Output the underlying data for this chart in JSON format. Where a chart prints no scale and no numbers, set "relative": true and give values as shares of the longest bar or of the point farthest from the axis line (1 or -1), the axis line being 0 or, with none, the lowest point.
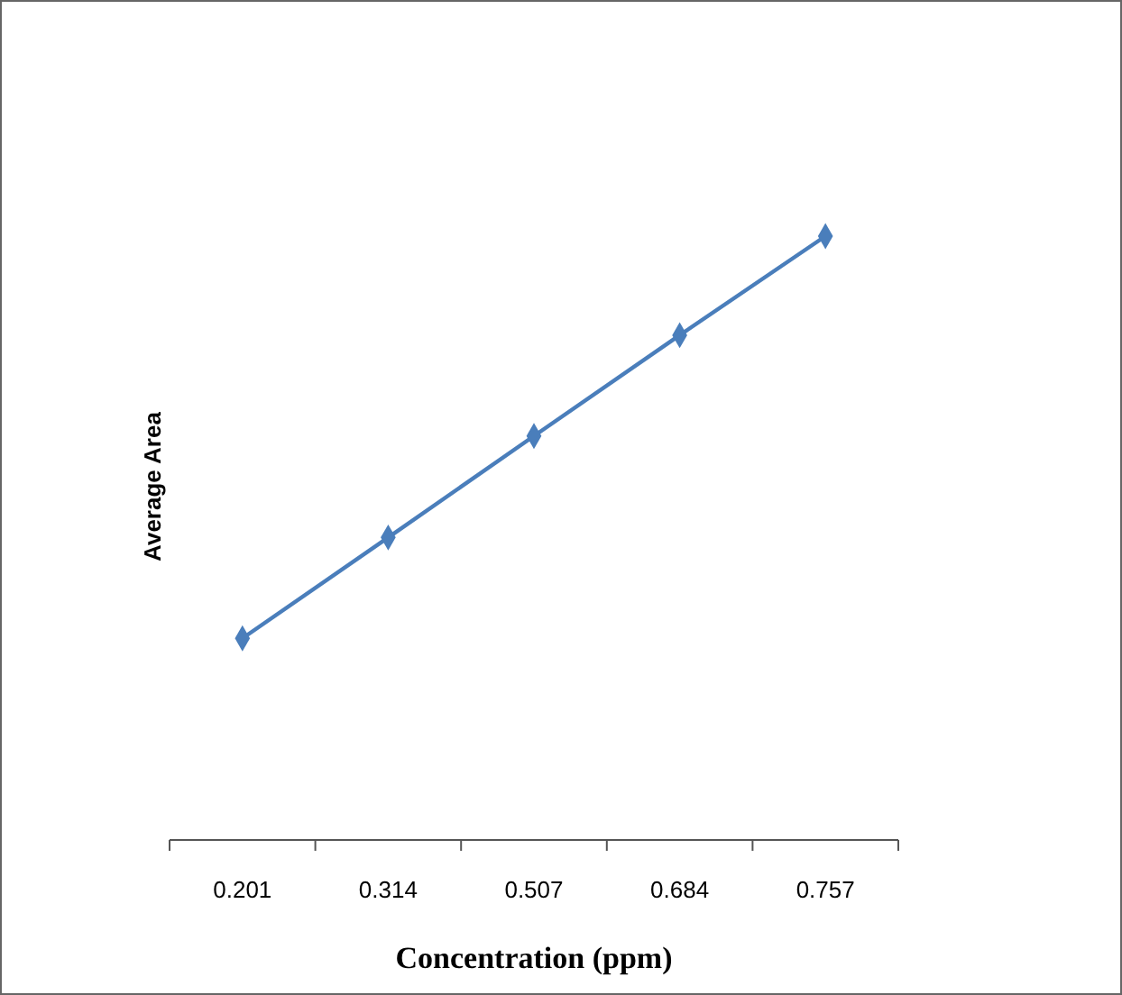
{
  "chart_data": {
    "type": "line",
    "relative": true,
    "xlabel": "Concentration (ppm)",
    "ylabel": "Average Area",
    "categories": [
      "0.201",
      "0.314",
      "0.507",
      "0.684",
      "0.757"
    ],
    "series": [
      {
        "color": "#4a7ebb",
        "values": [
          0.334,
          0.501,
          0.669,
          0.836,
          1
        ]
      }
    ],
    "marker": "diamond",
    "line_style": "solid"
  }
}
